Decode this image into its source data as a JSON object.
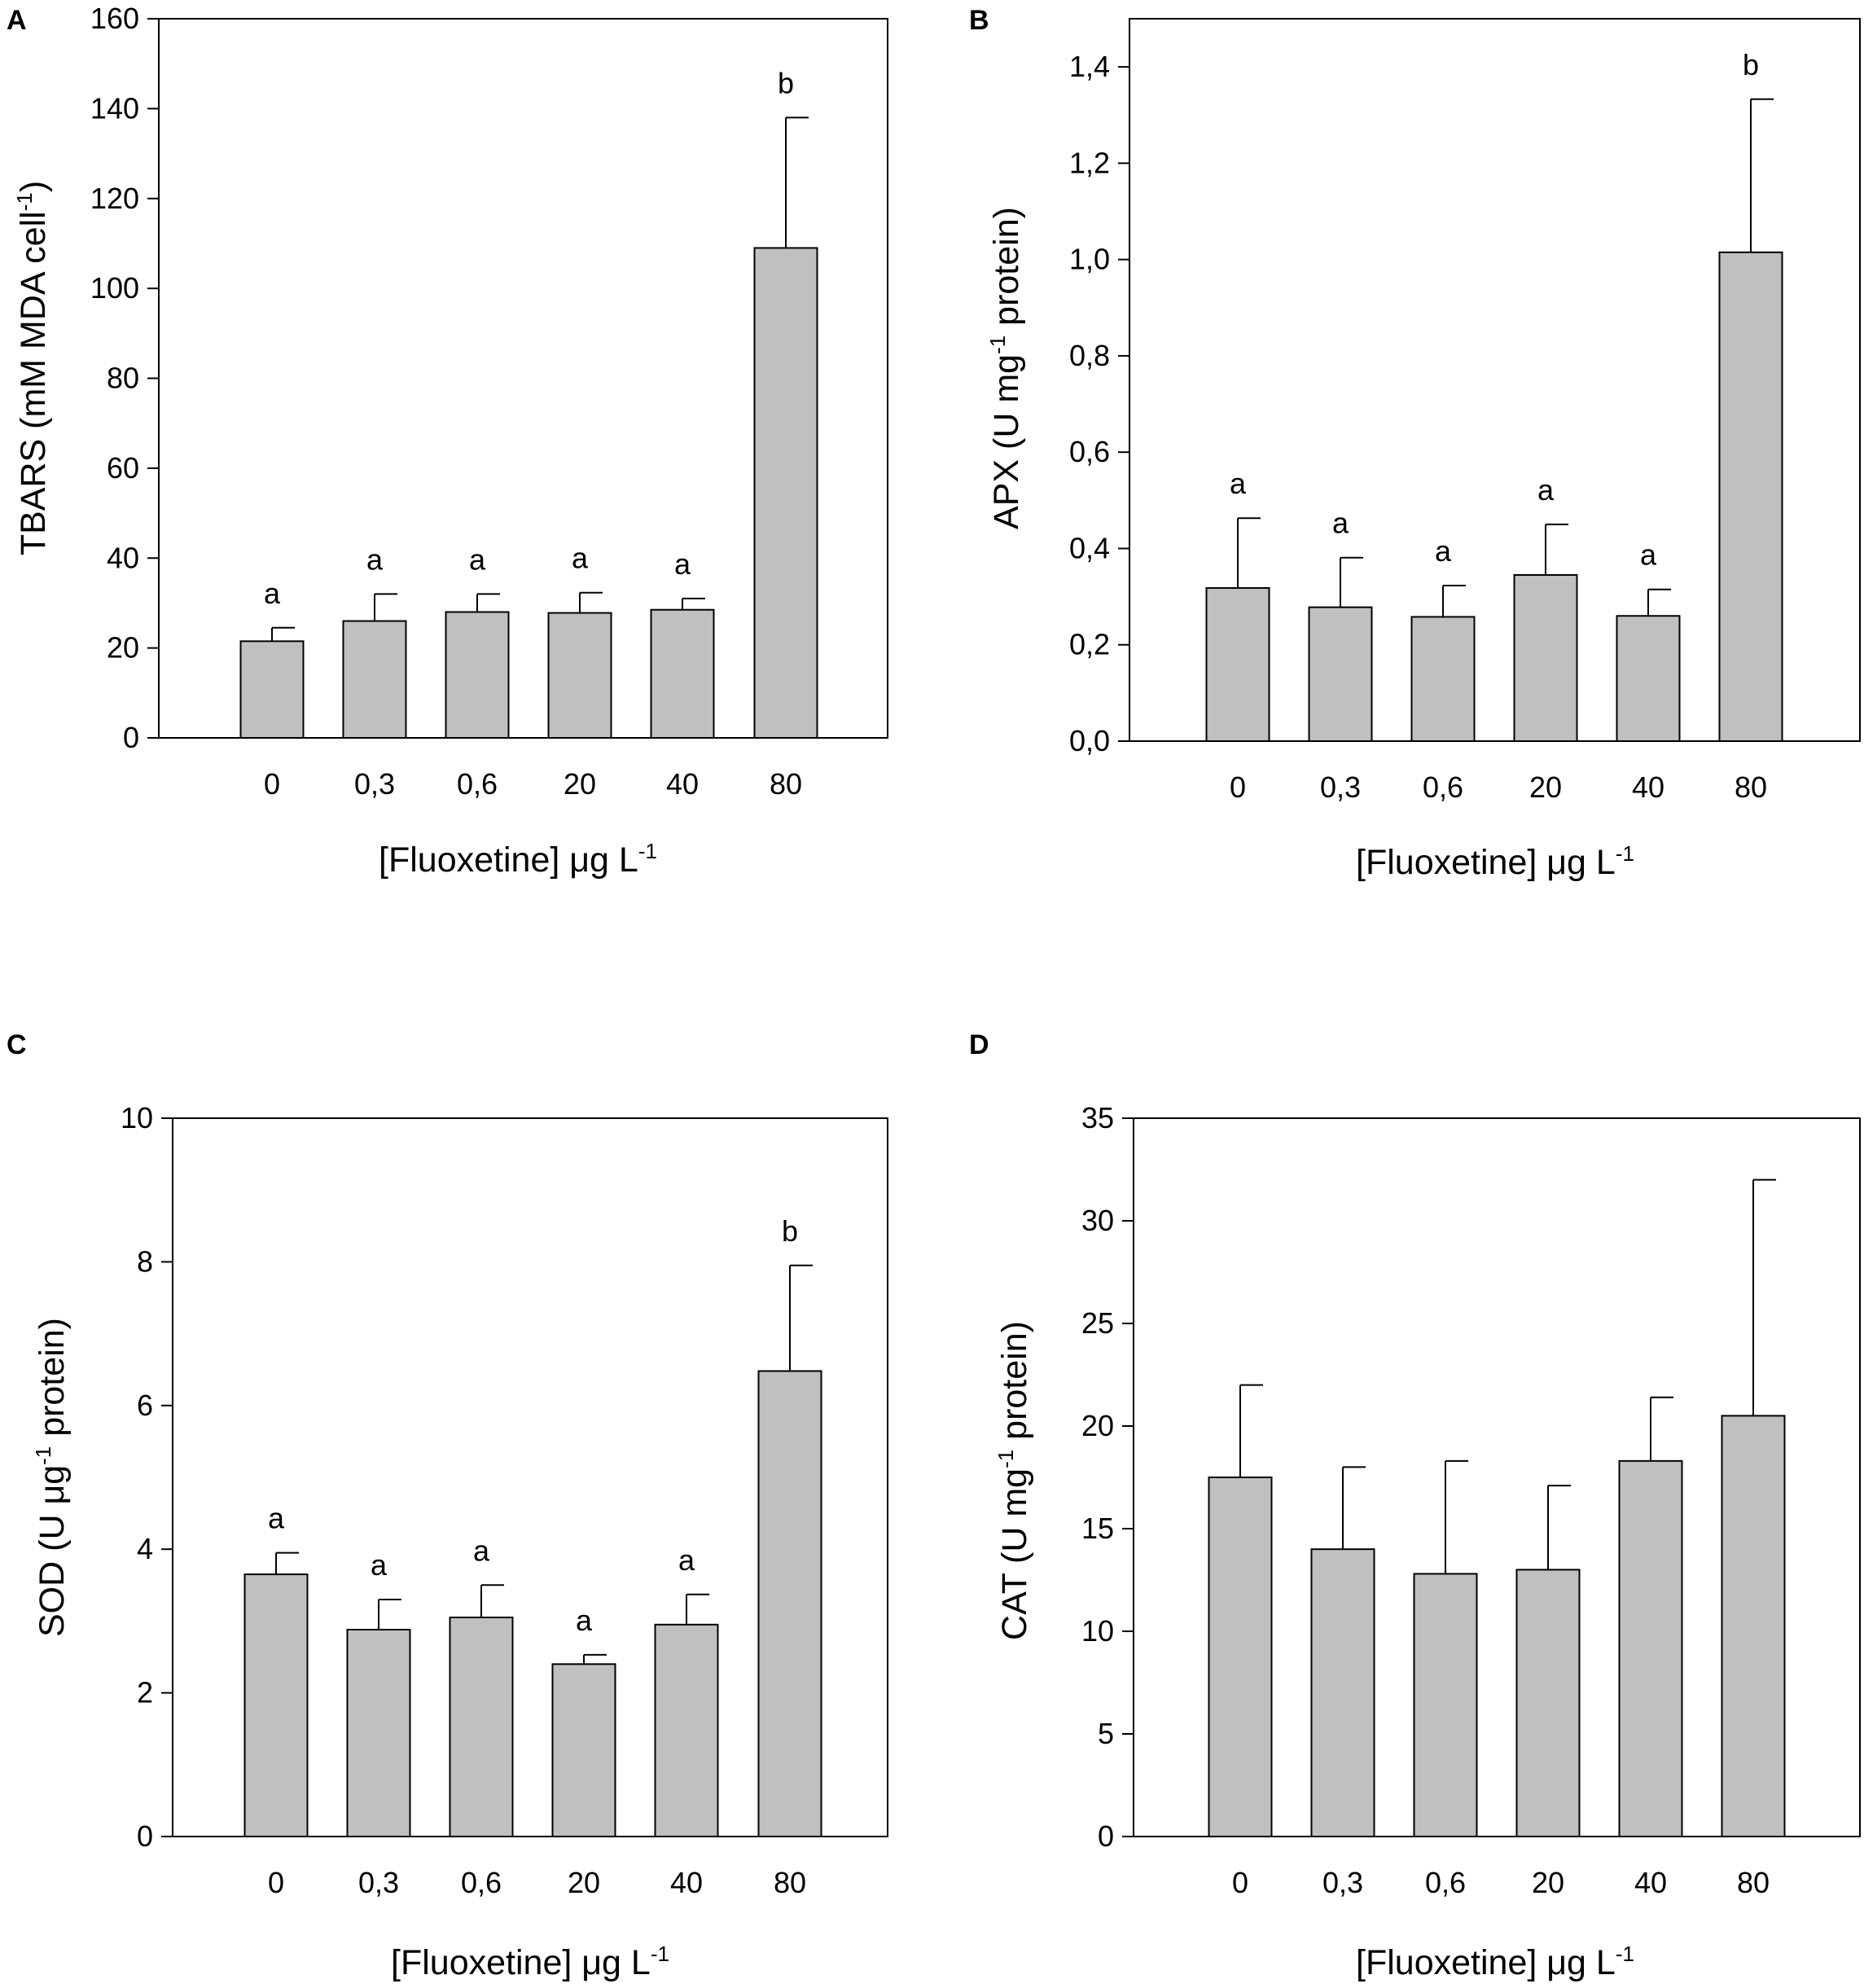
{
  "figure": {
    "panels": [
      {
        "letter": "A",
        "ylabel": {
          "before": "TBARS (mM MDA cell",
          "sup": "-1",
          "after": ")"
        },
        "xlabel": {
          "before": "[Fluoxetine] μg L",
          "sup": "-1",
          "after": ""
        }
      },
      {
        "letter": "B",
        "ylabel": {
          "before": "APX (U mg",
          "sup": "-1",
          "after": " protein)"
        },
        "xlabel": {
          "before": "[Fluoxetine] μg L",
          "sup": "-1",
          "after": ""
        }
      },
      {
        "letter": "C",
        "ylabel": {
          "before": "SOD (U μg",
          "sup": "-1",
          "after": " protein)"
        },
        "xlabel": {
          "before": "[Fluoxetine] μg L",
          "sup": "-1",
          "after": ""
        }
      },
      {
        "letter": "D",
        "ylabel": {
          "before": "CAT (U mg",
          "sup": "-1",
          "after": " protein)"
        },
        "xlabel": {
          "before": "[Fluoxetine] μg L",
          "sup": "-1",
          "after": ""
        }
      }
    ]
  },
  "chart_data": [
    {
      "panel": "A",
      "type": "bar",
      "categories": [
        "0",
        "0,3",
        "0,6",
        "20",
        "40",
        "80"
      ],
      "values": [
        21.5,
        26,
        28,
        27.8,
        28.5,
        109
      ],
      "errors": [
        3,
        6,
        4,
        4.5,
        2.5,
        29
      ],
      "significance": [
        "a",
        "a",
        "a",
        "a",
        "a",
        "b"
      ],
      "ylim": [
        0,
        160
      ],
      "yticks": [
        0,
        20,
        40,
        60,
        80,
        100,
        120,
        140,
        160
      ],
      "ytick_labels": [
        "0",
        "20",
        "40",
        "60",
        "80",
        "100",
        "120",
        "140",
        "160"
      ],
      "xlabel": "[Fluoxetine] μg L-1",
      "ylabel": "TBARS (mM MDA cell-1)",
      "bar_color": "#c0c0c0"
    },
    {
      "panel": "B",
      "type": "bar",
      "categories": [
        "0",
        "0,3",
        "0,6",
        "20",
        "40",
        "80"
      ],
      "values": [
        0.318,
        0.278,
        0.258,
        0.345,
        0.26,
        1.015
      ],
      "errors": [
        0.145,
        0.103,
        0.065,
        0.105,
        0.055,
        0.318
      ],
      "significance": [
        "a",
        "a",
        "a",
        "a",
        "a",
        "b"
      ],
      "ylim": [
        0,
        1.5
      ],
      "yticks": [
        0,
        0.2,
        0.4,
        0.6,
        0.8,
        1.0,
        1.2,
        1.4
      ],
      "ytick_labels": [
        "0,0",
        "0,2",
        "0,4",
        "0,6",
        "0,8",
        "1,0",
        "1,2",
        "1,4"
      ],
      "xlabel": "[Fluoxetine] μg L-1",
      "ylabel": "APX (U mg-1 protein)",
      "bar_color": "#c0c0c0"
    },
    {
      "panel": "C",
      "type": "bar",
      "categories": [
        "0",
        "0,3",
        "0,6",
        "20",
        "40",
        "80"
      ],
      "values": [
        3.65,
        2.88,
        3.05,
        2.4,
        2.95,
        6.48
      ],
      "errors": [
        0.3,
        0.42,
        0.45,
        0.13,
        0.42,
        1.47
      ],
      "significance": [
        "a",
        "a",
        "a",
        "a",
        "a",
        "b"
      ],
      "ylim": [
        0,
        10
      ],
      "yticks": [
        0,
        2,
        4,
        6,
        8,
        10
      ],
      "ytick_labels": [
        "0",
        "2",
        "4",
        "6",
        "8",
        "10"
      ],
      "xlabel": "[Fluoxetine] μg L-1",
      "ylabel": "SOD (U μg-1 protein)",
      "bar_color": "#c0c0c0"
    },
    {
      "panel": "D",
      "type": "bar",
      "categories": [
        "0",
        "0,3",
        "0,6",
        "20",
        "40",
        "80"
      ],
      "values": [
        17.5,
        14,
        12.8,
        13,
        18.3,
        20.5
      ],
      "errors": [
        4.5,
        4,
        5.5,
        4.1,
        3.1,
        11.5
      ],
      "significance": [
        "",
        "",
        "",
        "",
        "",
        ""
      ],
      "ylim": [
        0,
        35
      ],
      "yticks": [
        0,
        5,
        10,
        15,
        20,
        25,
        30,
        35
      ],
      "ytick_labels": [
        "0",
        "5",
        "10",
        "15",
        "20",
        "25",
        "30",
        "35"
      ],
      "xlabel": "[Fluoxetine] μg L-1",
      "ylabel": "CAT (U mg-1 protein)",
      "bar_color": "#c0c0c0"
    }
  ]
}
